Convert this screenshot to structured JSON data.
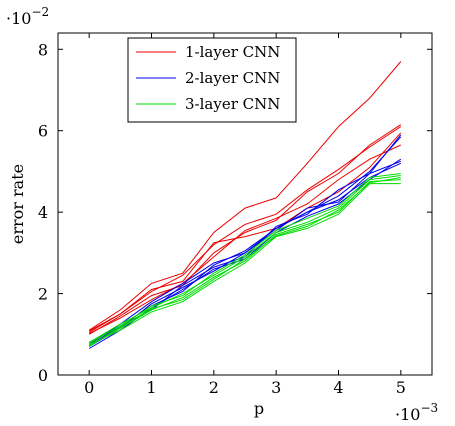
{
  "chart_data": {
    "type": "line",
    "xlabel": "p",
    "ylabel": "error rate",
    "x_multiplier": "·10",
    "x_multiplier_exp": "−3",
    "y_multiplier": "·10",
    "y_multiplier_exp": "−2",
    "xlim": [
      -0.5,
      5.5
    ],
    "ylim": [
      0,
      8.4
    ],
    "xticks": [
      0,
      1,
      2,
      3,
      4,
      5
    ],
    "xtick_labels": [
      "0",
      "1",
      "2",
      "3",
      "4",
      "5"
    ],
    "yticks": [
      0,
      2,
      4,
      6,
      8
    ],
    "ytick_labels": [
      "0",
      "2",
      "4",
      "6",
      "8"
    ],
    "legend_position": "top-left",
    "x": [
      0,
      0.5,
      1,
      1.5,
      2,
      2.5,
      3,
      3.5,
      4,
      4.5,
      5
    ],
    "groups": [
      {
        "name": "1-layer CNN",
        "color": "#ee0000",
        "runs": [
          [
            1.1,
            1.6,
            2.25,
            2.5,
            3.5,
            4.1,
            4.35,
            5.2,
            6.1,
            6.8,
            7.7
          ],
          [
            1.05,
            1.5,
            2.05,
            2.45,
            3.2,
            3.7,
            3.95,
            4.55,
            5.05,
            5.6,
            6.1
          ],
          [
            1.0,
            1.45,
            1.95,
            2.2,
            3.0,
            3.5,
            3.8,
            4.5,
            4.95,
            5.65,
            6.15
          ],
          [
            1.02,
            1.4,
            1.85,
            2.25,
            2.9,
            3.55,
            3.85,
            4.2,
            4.8,
            5.3,
            5.65
          ],
          [
            1.08,
            1.5,
            2.1,
            2.3,
            3.25,
            3.4,
            3.6,
            4.1,
            4.5,
            5.1,
            5.95
          ]
        ]
      },
      {
        "name": "2-layer CNN",
        "color": "#0000ee",
        "runs": [
          [
            0.75,
            1.25,
            1.8,
            2.25,
            2.75,
            3.0,
            3.6,
            4.0,
            4.4,
            5.0,
            5.85
          ],
          [
            0.7,
            1.15,
            1.75,
            2.15,
            2.55,
            3.0,
            3.55,
            4.1,
            4.25,
            4.95,
            5.25
          ],
          [
            0.8,
            1.2,
            1.6,
            2.2,
            2.65,
            2.9,
            3.65,
            3.95,
            4.55,
            4.95,
            5.9
          ],
          [
            0.65,
            1.1,
            1.65,
            2.1,
            2.6,
            2.85,
            3.5,
            3.9,
            4.2,
            4.8,
            5.3
          ],
          [
            0.72,
            1.2,
            1.7,
            2.05,
            2.7,
            3.05,
            3.6,
            4.0,
            4.3,
            4.85,
            5.2
          ]
        ]
      },
      {
        "name": "3-layer CNN",
        "color": "#00dd00",
        "runs": [
          [
            0.78,
            1.2,
            1.7,
            1.95,
            2.5,
            2.95,
            3.55,
            3.85,
            4.15,
            4.85,
            4.95
          ],
          [
            0.72,
            1.15,
            1.6,
            1.9,
            2.4,
            2.8,
            3.45,
            3.7,
            4.0,
            4.75,
            4.8
          ],
          [
            0.75,
            1.1,
            1.55,
            1.8,
            2.3,
            2.75,
            3.4,
            3.6,
            3.95,
            4.7,
            4.7
          ],
          [
            0.8,
            1.25,
            1.65,
            2.0,
            2.45,
            2.9,
            3.5,
            3.75,
            4.1,
            4.8,
            4.9
          ],
          [
            0.7,
            1.18,
            1.62,
            1.85,
            2.35,
            2.85,
            3.42,
            3.65,
            4.05,
            4.72,
            4.85
          ]
        ]
      }
    ]
  }
}
